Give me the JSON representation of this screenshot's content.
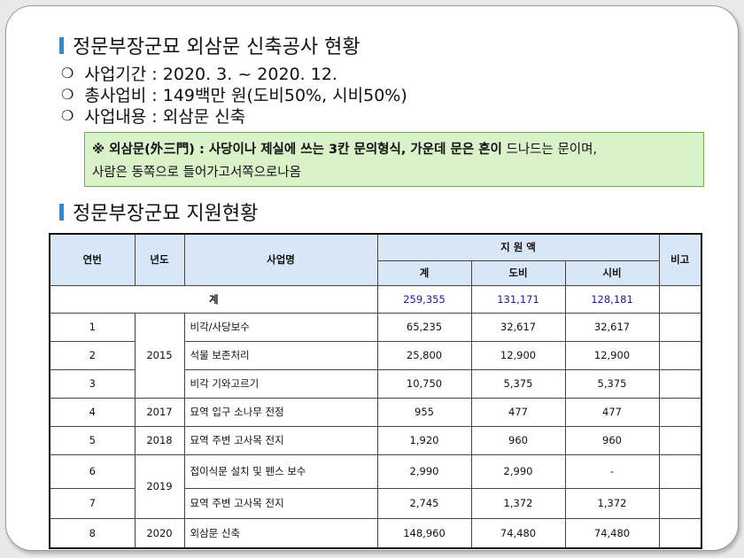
{
  "section1": {
    "title": "정문부장군묘 외삼문 신축공사 현황",
    "bullets": [
      "사업기간 : 2020. 3. ~ 2020. 12.",
      "총사업비 : 149백만 원(도비50%, 시비50%)",
      "사업내용 : 외삼문 신축"
    ],
    "note": {
      "bold": "※ 외삼문(外三門) : 사당이나 제실에 쓰는 3칸 문의형식, 가운데 문은 혼이",
      "normal": " 드나드는 문이며,",
      "line2": "사람은 동쪽으로 들어가고서쪽으로나옴"
    }
  },
  "section2": {
    "title": "정문부장군묘 지원현황"
  },
  "table": {
    "headers": {
      "no": "연번",
      "year": "년도",
      "project": "사업명",
      "amount": "지 원 액",
      "total": "계",
      "provincial": "도비",
      "city": "시비",
      "remarks": "비고"
    },
    "total_row": {
      "label": "계",
      "total": "259,355",
      "provincial": "131,171",
      "city": "128,181"
    },
    "rows": [
      {
        "no": "1",
        "year": "2015",
        "project": "비각/사당보수",
        "total": "65,235",
        "provincial": "32,617",
        "city": "32,617"
      },
      {
        "no": "2",
        "year": "",
        "project": "석물 보존처리",
        "total": "25,800",
        "provincial": "12,900",
        "city": "12,900"
      },
      {
        "no": "3",
        "year": "",
        "project": "비각 기와고르기",
        "total": "10,750",
        "provincial": "5,375",
        "city": "5,375"
      },
      {
        "no": "4",
        "year": "2017",
        "project": "묘역 입구 소나무 전정",
        "total": "955",
        "provincial": "477",
        "city": "477"
      },
      {
        "no": "5",
        "year": "2018",
        "project": "묘역 주변 고사목 전지",
        "total": "1,920",
        "provincial": "960",
        "city": "960"
      },
      {
        "no": "6",
        "year": "2019",
        "project": "접이식문 설치 및 펜스 보수",
        "total": "2,990",
        "provincial": "2,990",
        "city": "-"
      },
      {
        "no": "7",
        "year": "",
        "project": "묘역 주변 고사목 전지",
        "total": "2,745",
        "provincial": "1,372",
        "city": "1,372"
      },
      {
        "no": "8",
        "year": "2020",
        "project": "외삼문 신축",
        "total": "148,960",
        "provincial": "74,480",
        "city": "74,480"
      }
    ]
  }
}
